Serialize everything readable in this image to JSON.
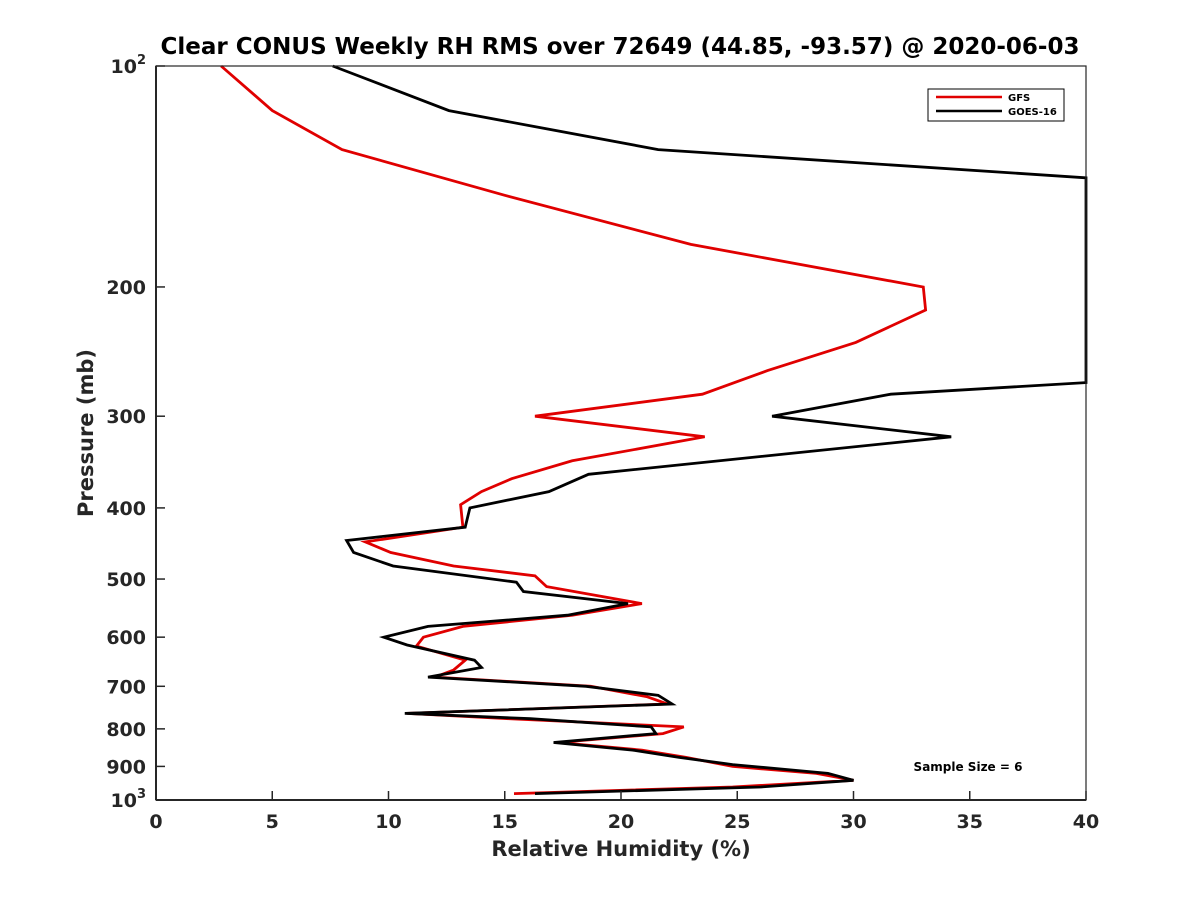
{
  "chart_data": {
    "type": "line",
    "title": "Clear CONUS Weekly RH RMS over 72649 (44.85, -93.57) @ 2020-06-03",
    "xlabel": "Relative Humidity (%)",
    "ylabel": "Pressure (mb)",
    "xlim": [
      0,
      40
    ],
    "ylim": [
      100,
      1000
    ],
    "y_scale": "log",
    "y_reversed": true,
    "grid": false,
    "legend_position": "top-right",
    "x_ticks": [
      0,
      5,
      10,
      15,
      20,
      25,
      30,
      35,
      40
    ],
    "x_tick_labels": [
      "0",
      "5",
      "10",
      "15",
      "20",
      "25",
      "30",
      "35",
      "40"
    ],
    "y_ticks": [
      {
        "value": 100,
        "base": "10",
        "exp": "2"
      },
      {
        "value": 200,
        "label": "200"
      },
      {
        "value": 300,
        "label": "300"
      },
      {
        "value": 400,
        "label": "400"
      },
      {
        "value": 500,
        "label": "500"
      },
      {
        "value": 600,
        "label": "600"
      },
      {
        "value": 700,
        "label": "700"
      },
      {
        "value": 800,
        "label": "800"
      },
      {
        "value": 900,
        "label": "900"
      },
      {
        "value": 1000,
        "base": "10",
        "exp": "3"
      }
    ],
    "annotation": "Sample Size = 6",
    "series": [
      {
        "name": "GFS",
        "color": "#e00000",
        "points": [
          [
            2.8,
            100
          ],
          [
            5.0,
            115
          ],
          [
            8.0,
            130
          ],
          [
            15.0,
            150
          ],
          [
            23.0,
            175
          ],
          [
            33.0,
            200
          ],
          [
            33.1,
            215
          ],
          [
            30.1,
            238
          ],
          [
            26.3,
            260
          ],
          [
            23.5,
            280
          ],
          [
            16.3,
            300
          ],
          [
            23.6,
            320
          ],
          [
            17.9,
            345
          ],
          [
            15.3,
            365
          ],
          [
            14.0,
            380
          ],
          [
            13.1,
            396
          ],
          [
            13.2,
            425
          ],
          [
            9.0,
            445
          ],
          [
            10.1,
            460
          ],
          [
            12.8,
            480
          ],
          [
            16.3,
            495
          ],
          [
            16.8,
            512
          ],
          [
            20.9,
            540
          ],
          [
            17.9,
            560
          ],
          [
            13.2,
            580
          ],
          [
            11.5,
            600
          ],
          [
            11.2,
            617
          ],
          [
            13.3,
            645
          ],
          [
            12.8,
            665
          ],
          [
            12.0,
            680
          ],
          [
            18.7,
            700
          ],
          [
            21.1,
            723
          ],
          [
            22.0,
            740
          ],
          [
            10.8,
            762
          ],
          [
            15.2,
            775
          ],
          [
            22.7,
            795
          ],
          [
            21.8,
            812
          ],
          [
            17.3,
            835
          ],
          [
            20.9,
            855
          ],
          [
            22.8,
            875
          ],
          [
            24.8,
            900
          ],
          [
            28.4,
            920
          ],
          [
            30.0,
            940
          ],
          [
            24.8,
            960
          ],
          [
            15.4,
            980
          ]
        ]
      },
      {
        "name": "GOES-16",
        "color": "#000000",
        "points": [
          [
            7.6,
            100
          ],
          [
            12.6,
            115
          ],
          [
            21.6,
            130
          ],
          [
            40.0,
            142
          ],
          [
            40.0,
            270
          ],
          [
            31.6,
            280
          ],
          [
            26.5,
            300
          ],
          [
            34.2,
            320
          ],
          [
            18.6,
            360
          ],
          [
            16.9,
            380
          ],
          [
            13.5,
            400
          ],
          [
            13.3,
            425
          ],
          [
            8.2,
            443
          ],
          [
            8.5,
            460
          ],
          [
            10.2,
            480
          ],
          [
            15.5,
            505
          ],
          [
            15.8,
            520
          ],
          [
            20.3,
            540
          ],
          [
            17.7,
            560
          ],
          [
            11.7,
            580
          ],
          [
            9.8,
            600
          ],
          [
            10.8,
            615
          ],
          [
            13.7,
            645
          ],
          [
            14.0,
            660
          ],
          [
            11.7,
            680
          ],
          [
            18.5,
            700
          ],
          [
            21.6,
            720
          ],
          [
            22.2,
            740
          ],
          [
            10.7,
            762
          ],
          [
            16.1,
            775
          ],
          [
            21.3,
            795
          ],
          [
            21.5,
            812
          ],
          [
            17.1,
            835
          ],
          [
            20.5,
            855
          ],
          [
            22.5,
            875
          ],
          [
            24.8,
            895
          ],
          [
            28.9,
            920
          ],
          [
            30.0,
            940
          ],
          [
            26.0,
            960
          ],
          [
            16.3,
            980
          ]
        ]
      }
    ]
  }
}
